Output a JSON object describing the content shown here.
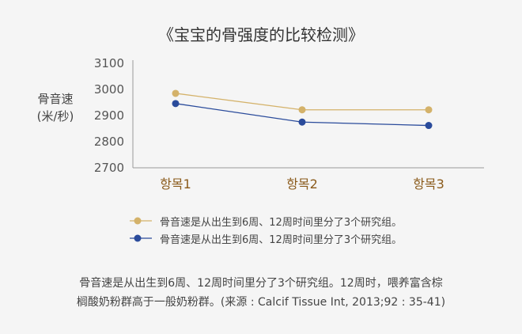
{
  "title": "《宝宝的骨强度的比较检测》",
  "ylabel_line1": "骨音速",
  "ylabel_line2": "(米/秒)",
  "footnote_line1": "骨音速是从出生到6周、12周时间里分了3个研究组。12周时，喂养富含棕",
  "footnote_line2": "榈酸奶粉群高于一般奶粉群。(来源 : Calcif Tissue Int, 2013;92 : 35-41)",
  "chart_data": {
    "type": "line",
    "title": "《宝宝的骨强度的比较检测》",
    "ylabel": "骨音速 (米/秒)",
    "xlabel": "",
    "categories": [
      "항목1",
      "항목2",
      "항목3"
    ],
    "ylim": [
      2700,
      3100
    ],
    "yticks": [
      "3100",
      "3000",
      "2900",
      "2800",
      "2700"
    ],
    "grid": false,
    "legend_position": "bottom",
    "series": [
      {
        "name": "骨音速是从出生到6周、12周时间里分了3个研究组。",
        "color": "#d4b26a",
        "values": [
          2985,
          2922,
          2922
        ]
      },
      {
        "name": "骨音速是从出生到6周、12周时间里分了3个研究组。",
        "color": "#2a4b9b",
        "values": [
          2946,
          2875,
          2862
        ]
      }
    ]
  }
}
